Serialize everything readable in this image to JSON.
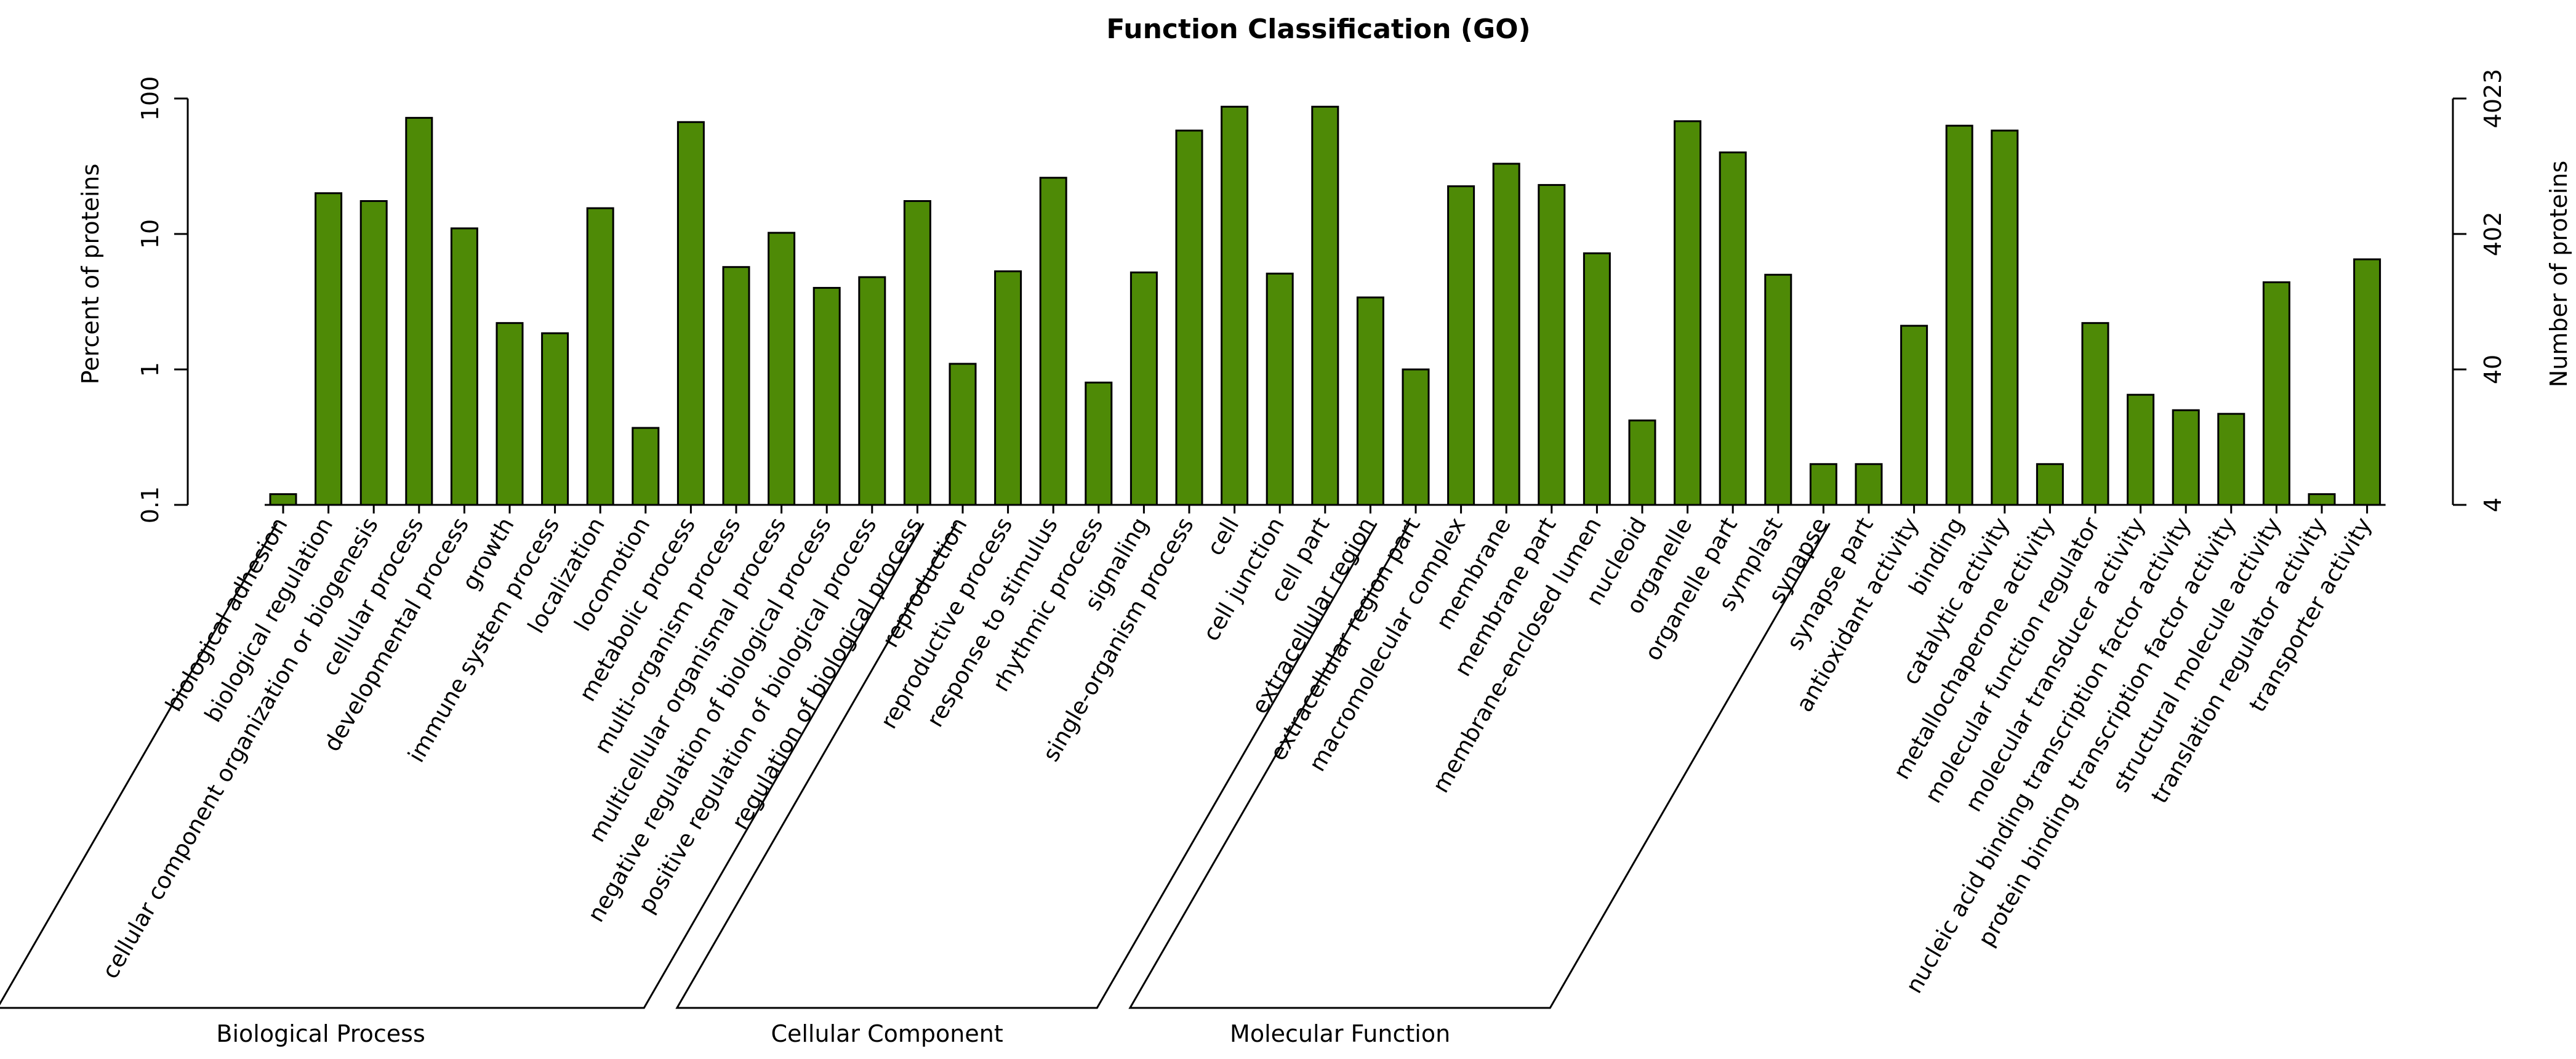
{
  "chart_data": {
    "type": "bar",
    "title": "Function Classification (GO)",
    "ylabel_left": "Percent of proteins",
    "ylabel_right": "Number of proteins",
    "y_scale": "log",
    "ylim": [
      0.1,
      100
    ],
    "left_ticks": [
      {
        "value": 0.1,
        "label": "0.1"
      },
      {
        "value": 1,
        "label": "1"
      },
      {
        "value": 10,
        "label": "10"
      },
      {
        "value": 100,
        "label": "100"
      }
    ],
    "right_ticks": [
      {
        "value": 0.1,
        "label": "4"
      },
      {
        "value": 1,
        "label": "40"
      },
      {
        "value": 10,
        "label": "402"
      },
      {
        "value": 100,
        "label": "4023"
      }
    ],
    "bar_color": "#4e8a06",
    "grid": false,
    "groups": [
      {
        "name": "Biological Process",
        "first": 0,
        "last": 14
      },
      {
        "name": "Cellular Component",
        "first": 15,
        "last": 24
      },
      {
        "name": "Molecular Function",
        "first": 25,
        "last": 34
      }
    ],
    "categories": [
      "biological adhesion",
      "biological regulation",
      "cellular component organization or biogenesis",
      "cellular process",
      "developmental process",
      "growth",
      "immune system process",
      "localization",
      "locomotion",
      "metabolic process",
      "multi-organism process",
      "multicellular organismal process",
      "negative regulation of biological process",
      "positive regulation of biological process",
      "regulation of biological process",
      "reproduction",
      "reproductive process",
      "response to stimulus",
      "rhythmic process",
      "signaling",
      "single-organism process",
      "cell",
      "cell junction",
      "cell part",
      "extracellular region",
      "extracellular region part",
      "macromolecular complex",
      "membrane",
      "membrane part",
      "membrane-enclosed lumen",
      "nucleoid",
      "organelle",
      "organelle part",
      "symplast",
      "synapse",
      "synapse part",
      "antioxidant activity",
      "binding",
      "catalytic activity",
      "metallochaperone activity",
      "molecular function regulator",
      "molecular transducer activity",
      "nucleic acid binding transcription factor activity",
      "protein binding transcription factor activity",
      "structural molecule activity",
      "translation regulator activity",
      "transporter activity"
    ],
    "values": [
      0.12,
      20,
      17.5,
      72,
      11,
      2.2,
      1.85,
      15.5,
      0.37,
      67,
      5.7,
      10.2,
      4.0,
      4.8,
      17.5,
      1.1,
      5.3,
      26,
      0.8,
      5.2,
      58,
      87,
      5.1,
      87,
      3.4,
      1.0,
      22.5,
      33,
      23,
      7.2,
      0.42,
      68,
      40,
      5.0,
      0.2,
      0.2,
      2.1,
      63,
      58,
      0.2,
      2.2,
      0.65,
      0.5,
      0.47,
      4.4,
      0.12,
      6.5
    ]
  }
}
